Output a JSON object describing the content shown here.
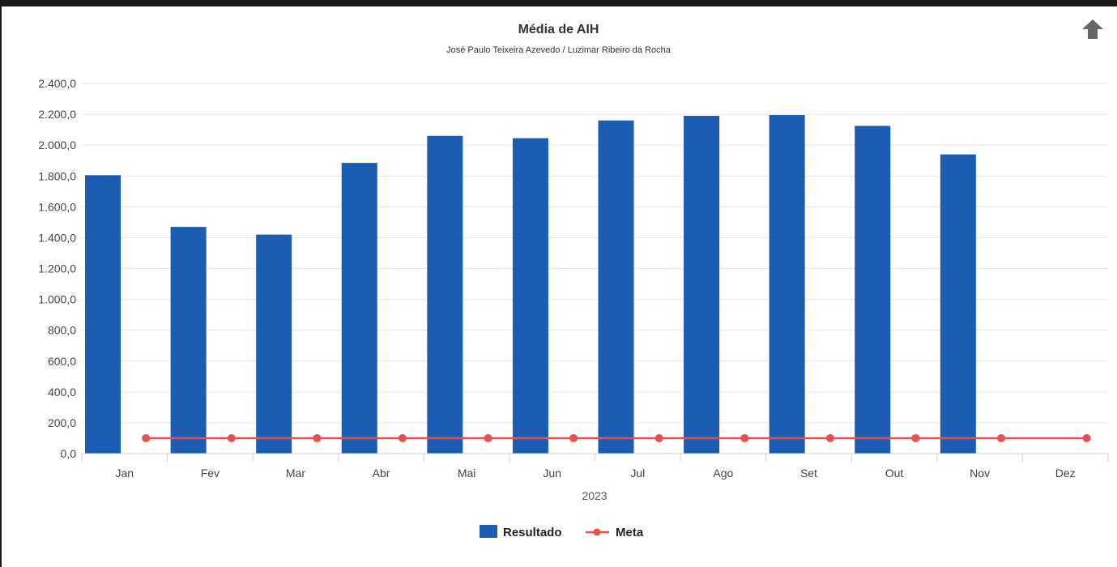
{
  "chart_data": {
    "type": "bar",
    "title": "Média de AIH",
    "subtitle": "José Paulo Teixeira Azevedo / Luzimar Ribeiro da Rocha",
    "xlabel": "2023",
    "ylabel": "",
    "categories": [
      "Jan",
      "Fev",
      "Mar",
      "Abr",
      "Mai",
      "Jun",
      "Jul",
      "Ago",
      "Set",
      "Out",
      "Nov",
      "Dez"
    ],
    "ylim": [
      0,
      2400
    ],
    "yticks": [
      "0,0",
      "200,0",
      "400,0",
      "600,0",
      "800,0",
      "1.000,0",
      "1.200,0",
      "1.400,0",
      "1.600,0",
      "1.800,0",
      "2.000,0",
      "2.200,0",
      "2.400,0"
    ],
    "grid": true,
    "legend_position": "bottom-center",
    "series": [
      {
        "name": "Resultado",
        "type": "bar",
        "color": "#1c5db4",
        "values": [
          1805,
          1470,
          1420,
          1885,
          2060,
          2045,
          2160,
          2190,
          2195,
          2125,
          1940,
          null
        ]
      },
      {
        "name": "Meta",
        "type": "line",
        "color": "#e8504f",
        "values": [
          100,
          100,
          100,
          100,
          100,
          100,
          100,
          100,
          100,
          100,
          100,
          100
        ]
      }
    ]
  },
  "export_icon": "arrow-up-icon"
}
